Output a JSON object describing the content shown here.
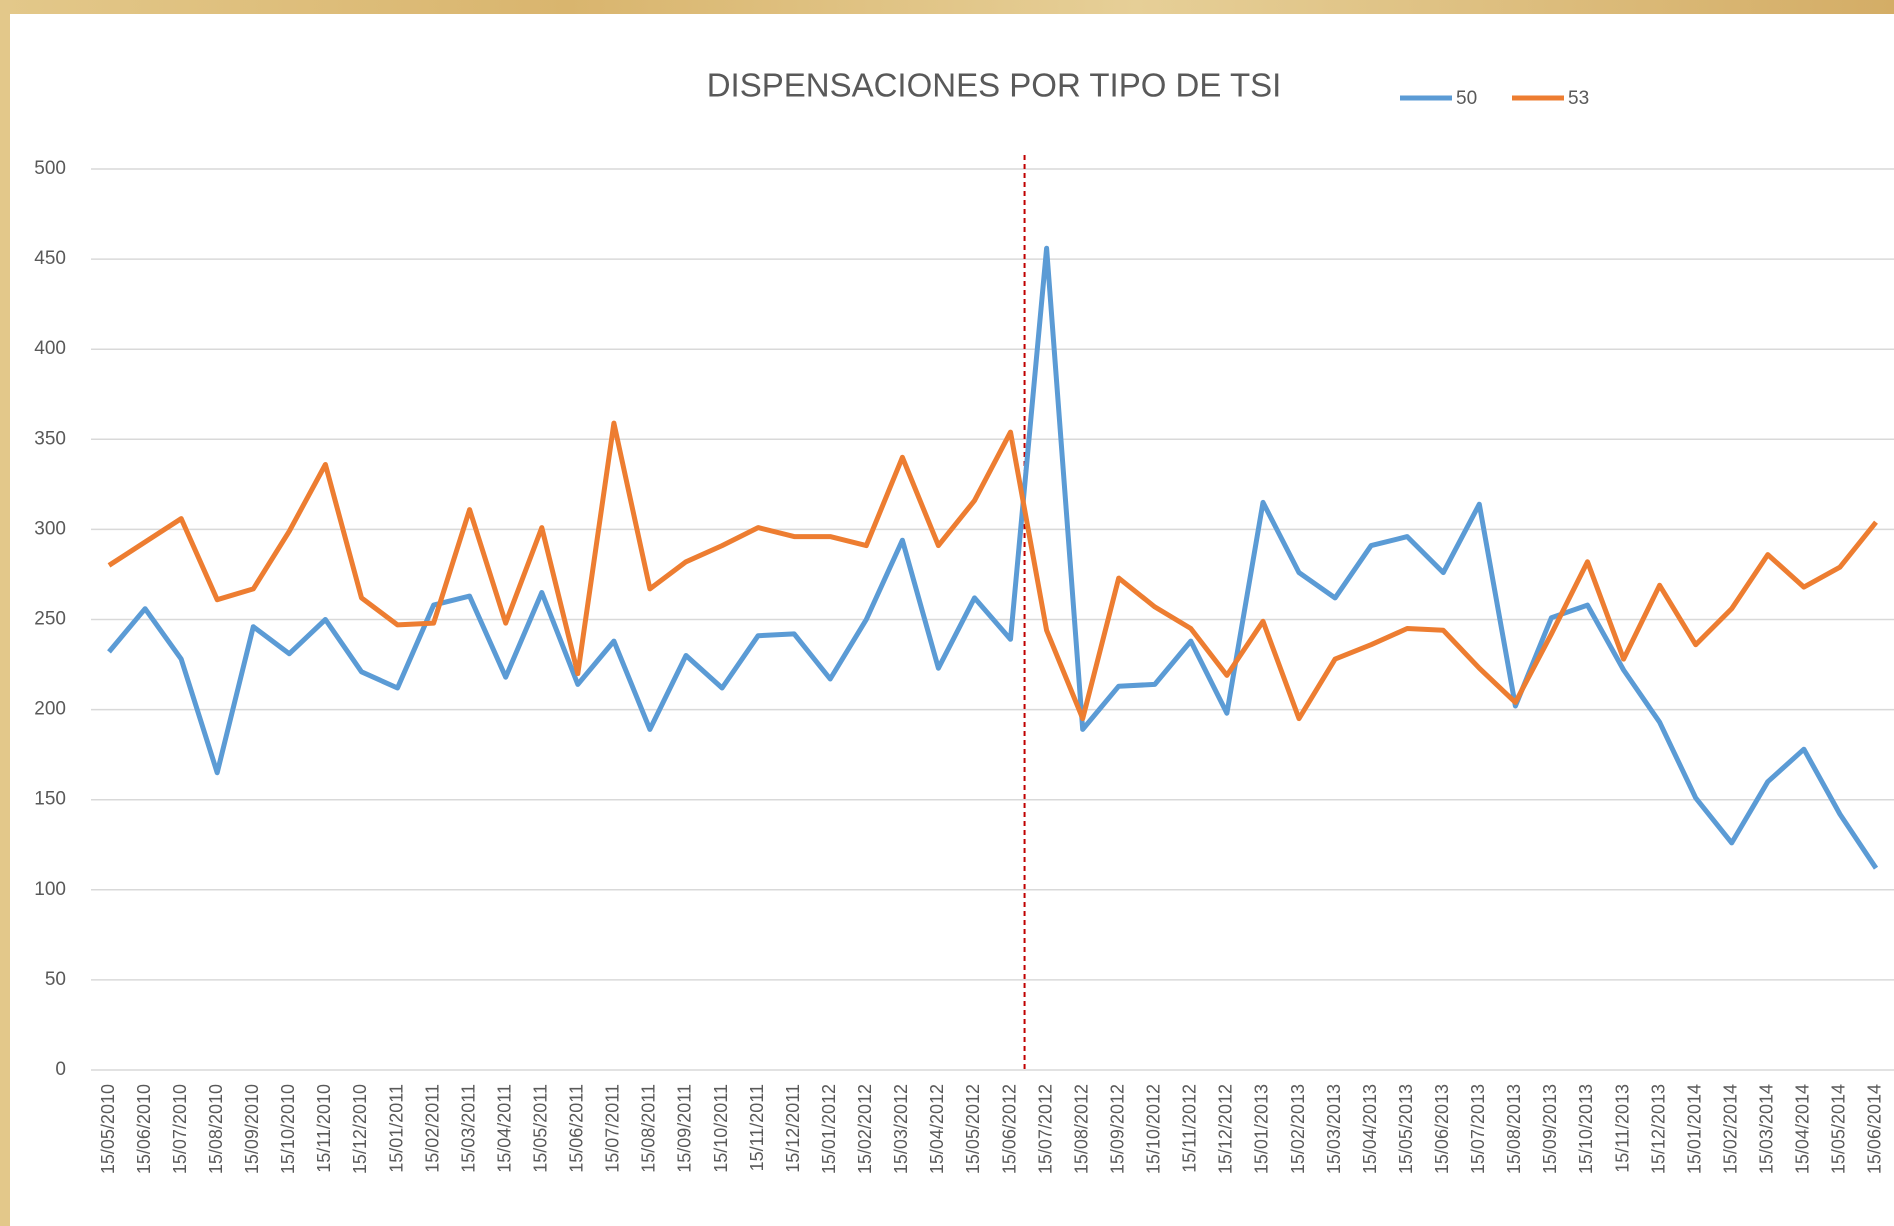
{
  "chart_data": {
    "type": "line",
    "title": "DISPENSACIONES POR TIPO DE TSI",
    "categories": [
      "15/05/2010",
      "15/06/2010",
      "15/07/2010",
      "15/08/2010",
      "15/09/2010",
      "15/10/2010",
      "15/11/2010",
      "15/12/2010",
      "15/01/2011",
      "15/02/2011",
      "15/03/2011",
      "15/04/2011",
      "15/05/2011",
      "15/06/2011",
      "15/07/2011",
      "15/08/2011",
      "15/09/2011",
      "15/10/2011",
      "15/11/2011",
      "15/12/2011",
      "15/01/2012",
      "15/02/2012",
      "15/03/2012",
      "15/04/2012",
      "15/05/2012",
      "15/06/2012",
      "15/07/2012",
      "15/08/2012",
      "15/09/2012",
      "15/10/2012",
      "15/11/2012",
      "15/12/2012",
      "15/01/2013",
      "15/02/2013",
      "15/03/2013",
      "15/04/2013",
      "15/05/2013",
      "15/06/2013",
      "15/07/2013",
      "15/08/2013",
      "15/09/2013",
      "15/10/2013",
      "15/11/2013",
      "15/12/2013",
      "15/01/2014",
      "15/02/2014",
      "15/03/2014",
      "15/04/2014",
      "15/05/2014",
      "15/06/2014"
    ],
    "series": [
      {
        "name": "50",
        "color": "#5b9bd5",
        "values": [
          232,
          256,
          228,
          165,
          246,
          231,
          250,
          221,
          212,
          258,
          263,
          218,
          265,
          214,
          238,
          189,
          230,
          212,
          241,
          242,
          217,
          250,
          294,
          223,
          262,
          239,
          456,
          189,
          213,
          214,
          238,
          198,
          315,
          276,
          262,
          291,
          296,
          276,
          314,
          202,
          251,
          258,
          222,
          193,
          151,
          126,
          160,
          178,
          142,
          112
        ]
      },
      {
        "name": "53",
        "color": "#ed7d31",
        "values": [
          280,
          293,
          306,
          261,
          267,
          299,
          336,
          262,
          247,
          248,
          311,
          248,
          301,
          220,
          359,
          267,
          282,
          291,
          301,
          296,
          296,
          291,
          340,
          291,
          316,
          354,
          244,
          195,
          273,
          257,
          245,
          219,
          249,
          195,
          228,
          236,
          245,
          244,
          223,
          204,
          242,
          282,
          228,
          269,
          236,
          256,
          286,
          268,
          279,
          304
        ]
      }
    ],
    "ylim": [
      0,
      500
    ],
    "yticks": [
      0,
      50,
      100,
      150,
      200,
      250,
      300,
      350,
      400,
      450,
      500
    ],
    "grid": true
  }
}
